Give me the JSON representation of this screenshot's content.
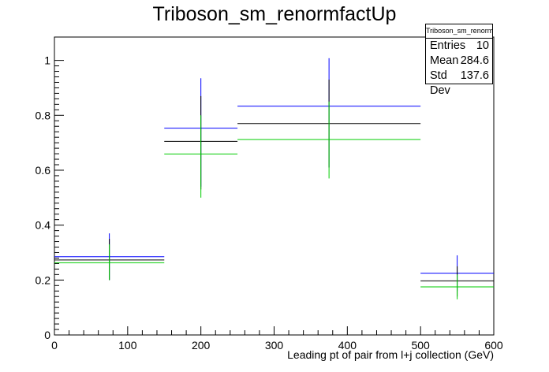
{
  "chart_data": {
    "type": "histogram",
    "title": "Triboson_sm_renormfactUp",
    "xlabel": "Leading pt of pair from l+j collection (GeV)",
    "ylabel": "",
    "xlim": [
      0,
      600
    ],
    "ylim": [
      0,
      1.085
    ],
    "x_ticks": [
      0,
      100,
      200,
      300,
      400,
      500,
      600
    ],
    "y_ticks": [
      0,
      0.2,
      0.4,
      0.6,
      0.8,
      1
    ],
    "y_tick_labels": [
      "0",
      "0.2",
      "0.4",
      "0.6",
      "0.8",
      "1"
    ],
    "grid": false,
    "bins": [
      {
        "lo": 0,
        "hi": 150,
        "center": 75
      },
      {
        "lo": 150,
        "hi": 250,
        "center": 200
      },
      {
        "lo": 250,
        "hi": 500,
        "center": 375
      },
      {
        "lo": 500,
        "hi": 600,
        "center": 550
      }
    ],
    "series": [
      {
        "color": "#0000ff",
        "values": [
          0.285,
          0.753,
          0.833,
          0.225
        ],
        "err_low": [
          0.2,
          0.54,
          0.61,
          0.16
        ],
        "err_high": [
          0.37,
          0.935,
          1.008,
          0.29
        ]
      },
      {
        "color": "#000000",
        "values": [
          0.273,
          0.705,
          0.77,
          0.197
        ],
        "err_low": [
          0.2,
          0.53,
          0.61,
          0.14
        ],
        "err_high": [
          0.35,
          0.87,
          0.93,
          0.25
        ]
      },
      {
        "color": "#00cc00",
        "values": [
          0.263,
          0.659,
          0.712,
          0.175
        ],
        "err_low": [
          0.2,
          0.5,
          0.57,
          0.13
        ],
        "err_high": [
          0.33,
          0.8,
          0.85,
          0.22
        ]
      }
    ],
    "stats": {
      "name": "Triboson_sm_renormfactUp",
      "entries_label": "Entries",
      "entries": "10",
      "mean_label": "Mean",
      "mean": "284.6",
      "stddev_label": "Std Dev",
      "stddev": "137.6"
    }
  }
}
